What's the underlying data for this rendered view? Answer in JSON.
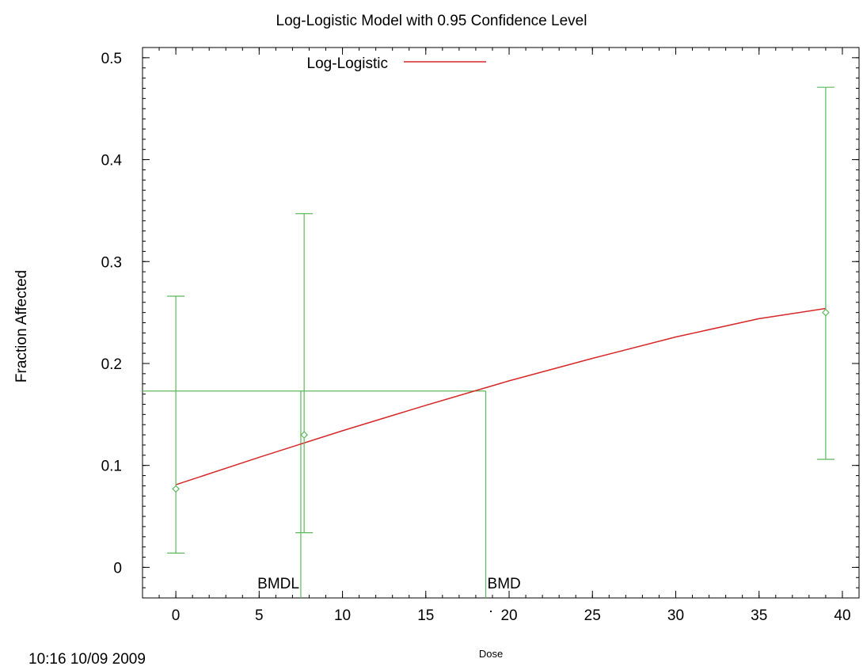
{
  "title": "Log-Logistic Model with 0.95 Confidence Level",
  "timestamp": "10:16 10/09 2009",
  "colors": {
    "model": "#d62728",
    "data": "#5cb85c",
    "axis": "#000000"
  },
  "chart_data": {
    "type": "line",
    "title": "Log-Logistic Model with 0.95 Confidence Level",
    "xlabel": "Dose",
    "ylabel": "Fraction Affected",
    "xlim": [
      -2,
      41
    ],
    "ylim": [
      -0.03,
      0.51
    ],
    "xticks": [
      0,
      5,
      10,
      15,
      20,
      25,
      30,
      35,
      40
    ],
    "yticks": [
      0,
      0.1,
      0.2,
      0.3,
      0.4,
      0.5
    ],
    "yticklabels": [
      "0",
      "0.1",
      "0.2",
      "0.3",
      "0.4",
      "0.5"
    ],
    "legend": {
      "position": "top-center",
      "entries": [
        "Log-Logistic"
      ]
    },
    "series": [
      {
        "name": "Log-Logistic",
        "type": "line",
        "x": [
          0,
          5,
          10,
          15,
          20,
          25,
          30,
          35,
          39
        ],
        "y": [
          0.081,
          0.108,
          0.134,
          0.159,
          0.183,
          0.205,
          0.226,
          0.244,
          0.254
        ]
      },
      {
        "type": "scatter-errorbar",
        "points": [
          {
            "x": 0,
            "y": 0.077,
            "lower": 0.014,
            "upper": 0.266
          },
          {
            "x": 7.7,
            "y": 0.13,
            "lower": 0.034,
            "upper": 0.347
          },
          {
            "x": 39,
            "y": 0.25,
            "lower": 0.106,
            "upper": 0.471
          }
        ]
      }
    ],
    "bmr_level": 0.173,
    "bmd": {
      "label": "BMD",
      "x": 18.6
    },
    "bmdl": {
      "label": "BMDL",
      "x": 7.5
    }
  }
}
